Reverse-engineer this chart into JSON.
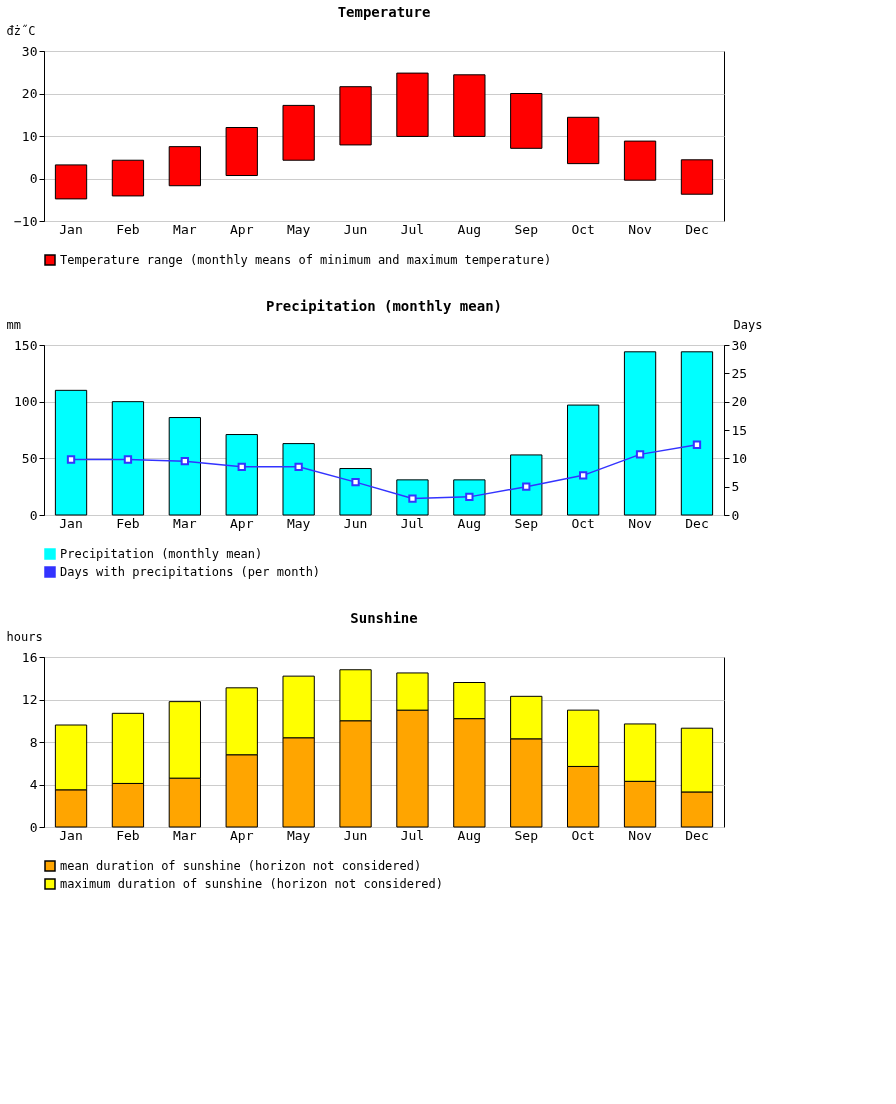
{
  "chart_data": [
    {
      "type": "bar",
      "title": "Temperature",
      "ylabel": "đż˝C",
      "categories": [
        "Jan",
        "Feb",
        "Mar",
        "Apr",
        "May",
        "Jun",
        "Jul",
        "Aug",
        "Sep",
        "Oct",
        "Nov",
        "Dec"
      ],
      "series": [
        {
          "name": "Temperature range (monthly means of minimum and maximum temperature)",
          "color": "#ff0000",
          "base": [
            -4.8,
            -4.1,
            -1.7,
            0.7,
            4.3,
            7.9,
            9.9,
            9.9,
            7.1,
            3.5,
            -0.4,
            -3.7
          ],
          "values": [
            8.0,
            8.4,
            9.2,
            11.3,
            12.9,
            13.7,
            14.9,
            14.5,
            12.9,
            10.9,
            9.2,
            8.1
          ]
        }
      ],
      "ylim": [
        -10,
        30
      ],
      "yticks": [
        -10,
        0,
        10,
        20,
        30
      ],
      "grid": "y",
      "legend": "bottom"
    },
    {
      "type": "bar",
      "title": "Precipitation (monthly mean)",
      "ylabel": "mm",
      "y2label": "Days",
      "categories": [
        "Jan",
        "Feb",
        "Mar",
        "Apr",
        "May",
        "Jun",
        "Jul",
        "Aug",
        "Sep",
        "Oct",
        "Nov",
        "Dec"
      ],
      "series": [
        {
          "name": "Precipitation (monthly mean)",
          "color": "#00ffff",
          "values": [
            110,
            100,
            86,
            71,
            63,
            41,
            31,
            31,
            53,
            97,
            144,
            144
          ]
        },
        {
          "name": "Days with precipitations (per month)",
          "color": "#3333ff",
          "type": "line",
          "axis": "y2",
          "marker": "square",
          "values": [
            9.8,
            9.8,
            9.5,
            8.5,
            8.5,
            5.8,
            2.9,
            3.2,
            5.0,
            7.0,
            10.7,
            12.4
          ]
        }
      ],
      "ylim": [
        0,
        150
      ],
      "yticks": [
        0,
        50,
        100,
        150
      ],
      "y2lim": [
        0,
        30
      ],
      "y2ticks": [
        0,
        5,
        10,
        15,
        20,
        25,
        30
      ],
      "grid": "y",
      "legend": "bottom"
    },
    {
      "type": "bar",
      "title": "Sunshine",
      "ylabel": "hours",
      "stacked": true,
      "categories": [
        "Jan",
        "Feb",
        "Mar",
        "Apr",
        "May",
        "Jun",
        "Jul",
        "Aug",
        "Sep",
        "Oct",
        "Nov",
        "Dec"
      ],
      "series": [
        {
          "name": "mean duration of sunshine (horizon not considered)",
          "color": "#ffa500",
          "values": [
            3.5,
            4.1,
            4.6,
            6.8,
            8.4,
            10.0,
            11.0,
            10.2,
            8.3,
            5.7,
            4.3,
            3.3
          ]
        },
        {
          "name": "maximum duration of sunshine (horizon not considered)",
          "color": "#ffff00",
          "values": [
            6.1,
            6.6,
            7.2,
            6.3,
            5.8,
            4.8,
            3.5,
            3.4,
            4.0,
            5.3,
            5.4,
            6.0
          ]
        }
      ],
      "ylim": [
        0,
        16
      ],
      "yticks": [
        0,
        4,
        8,
        12,
        16
      ],
      "grid": "y",
      "legend": "bottom"
    }
  ]
}
